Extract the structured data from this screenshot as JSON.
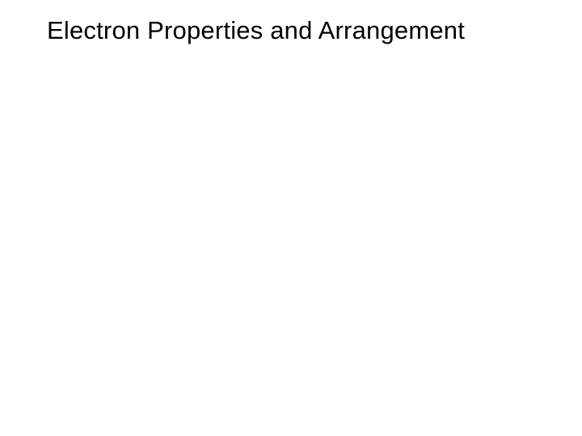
{
  "slide": {
    "title": "Electron Properties and Arrangement",
    "title_fontsize": 31,
    "title_color": "#000000",
    "background_color": "#ffffff",
    "font_family": "Arial, Helvetica, sans-serif"
  }
}
